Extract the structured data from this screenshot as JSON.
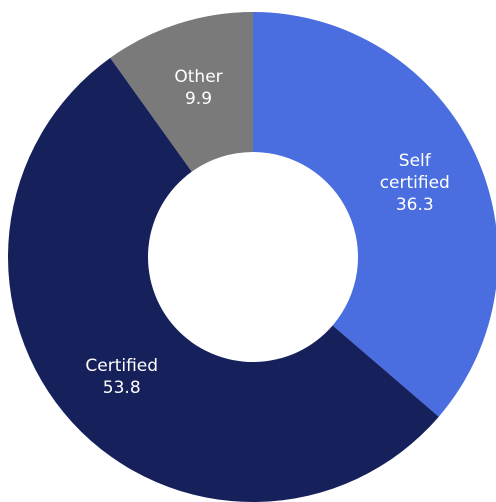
{
  "chart_data": {
    "type": "donut",
    "categories": [
      "Self certified",
      "Certified",
      "Other"
    ],
    "values": [
      36.3,
      53.8,
      9.9
    ],
    "colors": [
      "#4a6ee0",
      "#16215c",
      "#7a7a7a"
    ]
  }
}
